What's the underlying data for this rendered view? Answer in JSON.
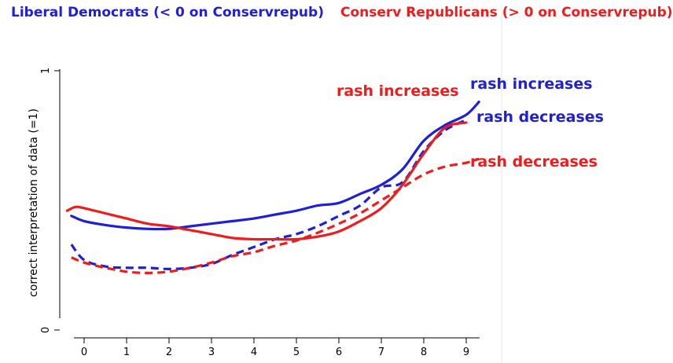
{
  "chart_data": {
    "type": "line",
    "title": "",
    "ylabel": "correct interpretation of data (=1)",
    "xlabel": "",
    "xlim": [
      -0.5,
      9.4
    ],
    "ylim": [
      0,
      1
    ],
    "x_ticks": [
      "0",
      "1",
      "2",
      "3",
      "4",
      "5",
      "6",
      "7",
      "8",
      "9"
    ],
    "y_ticks": [
      "0",
      "1"
    ],
    "legend": [
      {
        "label": "Liberal Democrats (< 0 on Conservrepub)",
        "color": "#1f1fd6"
      },
      {
        "label": "Conserv Republicans (> 0 on Conservrepub)",
        "color": "#ee1c1c"
      }
    ],
    "series": [
      {
        "name": "Liberal Democrats rash increases",
        "group": "Liberal Democrats",
        "condition": "rash increases",
        "color": "#1f1fd6",
        "dash": false,
        "x": [
          -0.3,
          0,
          0.5,
          1,
          1.5,
          2,
          2.5,
          3,
          3.5,
          4,
          4.5,
          5,
          5.5,
          6,
          6.5,
          7,
          7.5,
          8,
          8.5,
          9,
          9.3
        ],
        "y": [
          0.44,
          0.42,
          0.405,
          0.395,
          0.39,
          0.39,
          0.4,
          0.41,
          0.42,
          0.43,
          0.445,
          0.46,
          0.48,
          0.49,
          0.525,
          0.56,
          0.62,
          0.73,
          0.79,
          0.83,
          0.88
        ]
      },
      {
        "name": "Liberal Democrats rash decreases",
        "group": "Liberal Democrats",
        "condition": "rash decreases",
        "color": "#1f1fd6",
        "dash": true,
        "x": [
          -0.3,
          0,
          0.5,
          1,
          1.5,
          2,
          2.5,
          3,
          3.5,
          4,
          4.5,
          5,
          5.5,
          6,
          6.5,
          7,
          7.5,
          8,
          8.5,
          9
        ],
        "y": [
          0.33,
          0.27,
          0.245,
          0.24,
          0.24,
          0.235,
          0.24,
          0.255,
          0.29,
          0.32,
          0.35,
          0.37,
          0.4,
          0.44,
          0.48,
          0.55,
          0.57,
          0.69,
          0.77,
          0.81
        ]
      },
      {
        "name": "Conserv Republicans rash increases",
        "group": "Conserv Republicans",
        "condition": "rash increases",
        "color": "#ee1c1c",
        "dash": false,
        "x": [
          -0.4,
          -0.2,
          0,
          0.5,
          1,
          1.5,
          2,
          2.5,
          3,
          3.5,
          4,
          4.5,
          5,
          5.5,
          6,
          6.5,
          7,
          7.5,
          8,
          8.5,
          9
        ],
        "y": [
          0.46,
          0.475,
          0.47,
          0.45,
          0.43,
          0.41,
          0.4,
          0.385,
          0.37,
          0.355,
          0.35,
          0.35,
          0.35,
          0.36,
          0.38,
          0.42,
          0.47,
          0.56,
          0.68,
          0.78,
          0.8
        ]
      },
      {
        "name": "Conserv Republicans rash decreases",
        "group": "Conserv Republicans",
        "condition": "rash decreases",
        "color": "#ee1c1c",
        "dash": true,
        "x": [
          -0.3,
          0,
          0.5,
          1,
          1.5,
          2,
          2.5,
          3,
          3.5,
          4,
          4.5,
          5,
          5.5,
          6,
          6.5,
          7,
          7.5,
          8,
          8.5,
          9,
          9.3
        ],
        "y": [
          0.28,
          0.26,
          0.24,
          0.225,
          0.22,
          0.225,
          0.24,
          0.26,
          0.285,
          0.3,
          0.325,
          0.345,
          0.375,
          0.41,
          0.45,
          0.5,
          0.55,
          0.6,
          0.63,
          0.645,
          0.66
        ]
      }
    ],
    "annotations": [
      {
        "text": "rash increases",
        "color": "#ee1c1c",
        "series": "Conserv Republicans rash increases"
      },
      {
        "text": "rash increases",
        "color": "#1f1fd6",
        "series": "Liberal Democrats rash increases"
      },
      {
        "text": "rash decreases",
        "color": "#1f1fd6",
        "series": "Liberal Democrats rash decreases"
      },
      {
        "text": "rash decreases",
        "color": "#ee1c1c",
        "series": "Conserv Republicans rash decreases"
      }
    ]
  }
}
